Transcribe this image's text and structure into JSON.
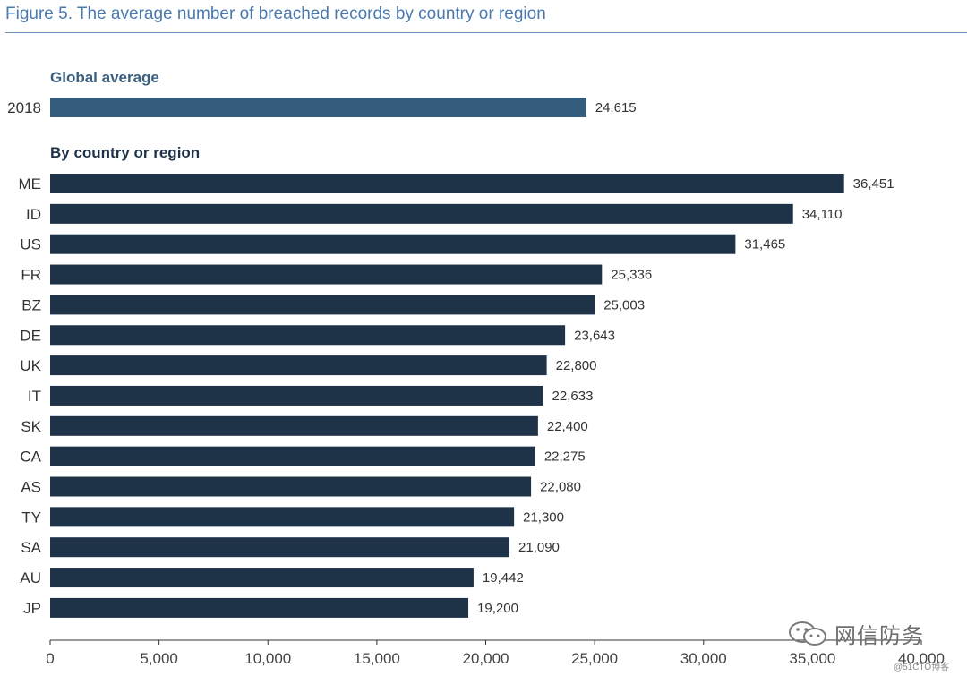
{
  "title": "Figure 5. The average number of breached records by country or region",
  "watermark": {
    "text": "网信防务",
    "source": "@51CTO博客",
    "icon": "wechat-icon"
  },
  "colors": {
    "global_bar": "#355b7d",
    "country_bar": "#1f3348",
    "title": "#4a79b0",
    "section_global": "#3b5f80",
    "section_country": "#1f3348"
  },
  "chart_data": {
    "type": "bar",
    "orientation": "horizontal",
    "title": "Figure 5. The average number of breached records by country or region",
    "xlim": [
      0,
      40000
    ],
    "xticks": [
      "0",
      "5,000",
      "10,000",
      "15,000",
      "20,000",
      "25,000",
      "30,000",
      "35,000",
      "40,000"
    ],
    "xtick_values": [
      0,
      5000,
      10000,
      15000,
      20000,
      25000,
      30000,
      35000,
      40000
    ],
    "grid": false,
    "groups": [
      {
        "label": "Global average",
        "categories": [
          "2018"
        ],
        "values": [
          24615
        ],
        "value_labels": [
          "24,615"
        ]
      },
      {
        "label": "By country or region",
        "categories": [
          "ME",
          "ID",
          "US",
          "FR",
          "BZ",
          "DE",
          "UK",
          "IT",
          "SK",
          "CA",
          "AS",
          "TY",
          "SA",
          "AU",
          "JP"
        ],
        "values": [
          36451,
          34110,
          31465,
          25336,
          25003,
          23643,
          22800,
          22633,
          22400,
          22275,
          22080,
          21300,
          21090,
          19442,
          19200
        ],
        "value_labels": [
          "36,451",
          "34,110",
          "31,465",
          "25,336",
          "25,003",
          "23,643",
          "22,800",
          "22,633",
          "22,400",
          "22,275",
          "22,080",
          "21,300",
          "21,090",
          "19,442",
          "19,200"
        ]
      }
    ]
  }
}
